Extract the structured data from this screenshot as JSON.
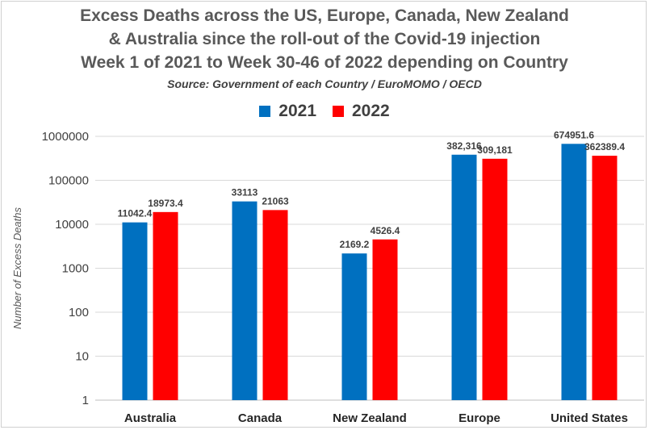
{
  "chart_data": {
    "type": "bar",
    "title": [
      "Excess Deaths across the US, Europe, Canada, New Zealand",
      "& Australia since the roll-out of the Covid-19 injection",
      "Week 1 of 2021 to Week 30-46 of 2022 depending on Country"
    ],
    "subtitle": "Source: Government of each Country / EuroMOMO / OECD",
    "ylabel": "Number of Excess Deaths",
    "xlabel": "",
    "yscale": "log",
    "ylim": [
      1,
      1000000
    ],
    "yticks": [
      "1",
      "10",
      "100",
      "1000",
      "10000",
      "100000",
      "1000000"
    ],
    "grid": true,
    "legend_position": "top-center",
    "categories": [
      "Australia",
      "Canada",
      "New Zealand",
      "Europe",
      "United States"
    ],
    "series": [
      {
        "name": "2021",
        "color": "#0070C0",
        "values": [
          11042.4,
          33113,
          2169.2,
          382316,
          674951.6
        ],
        "labels": [
          "11042.4",
          "33113",
          "2169.2",
          "382,316",
          "674951.6"
        ]
      },
      {
        "name": "2022",
        "color": "#FF0000",
        "values": [
          18973.4,
          21063,
          4526.4,
          309181,
          362389.4
        ],
        "labels": [
          "18973.4",
          "21063",
          "4526.4",
          "309,181",
          "362389.4"
        ]
      }
    ]
  }
}
